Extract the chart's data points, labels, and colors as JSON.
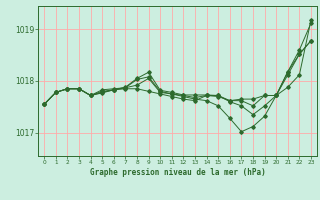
{
  "title": "Graphe pression niveau de la mer (hPa)",
  "background_color": "#cceee0",
  "grid_color": "#ffaaaa",
  "line_color": "#2d6a2d",
  "xlim": [
    -0.5,
    23.5
  ],
  "ylim": [
    1016.55,
    1019.45
  ],
  "yticks": [
    1017,
    1018,
    1019
  ],
  "xtick_labels": [
    "0",
    "1",
    "2",
    "3",
    "4",
    "5",
    "6",
    "7",
    "8",
    "9",
    "10",
    "11",
    "12",
    "13",
    "14",
    "15",
    "16",
    "17",
    "18",
    "19",
    "20",
    "21",
    "22",
    "23"
  ],
  "series": [
    [
      1017.55,
      1017.78,
      1017.85,
      1017.85,
      1017.72,
      1017.77,
      1017.83,
      1017.87,
      1017.92,
      1018.05,
      1017.78,
      1017.75,
      1017.72,
      1017.68,
      1017.72,
      1017.7,
      1017.62,
      1017.65,
      1017.65,
      1017.72,
      1017.72,
      1018.18,
      1018.6,
      1019.12
    ],
    [
      1017.55,
      1017.78,
      1017.85,
      1017.85,
      1017.72,
      1017.8,
      1017.83,
      1017.88,
      1018.05,
      1018.17,
      1017.82,
      1017.78,
      1017.73,
      1017.73,
      1017.73,
      1017.72,
      1017.6,
      1017.52,
      1017.35,
      1017.52,
      1017.72,
      1017.88,
      1018.12,
      1019.18
    ],
    [
      1017.55,
      1017.78,
      1017.85,
      1017.85,
      1017.72,
      1017.83,
      1017.85,
      1017.87,
      1018.03,
      1018.08,
      1017.8,
      1017.75,
      1017.7,
      1017.65,
      1017.62,
      1017.52,
      1017.28,
      1017.02,
      1017.12,
      1017.32,
      1017.72,
      1018.12,
      1018.52,
      1018.78
    ],
    [
      1017.55,
      1017.78,
      1017.85,
      1017.85,
      1017.72,
      1017.78,
      1017.83,
      1017.85,
      1017.85,
      1017.8,
      1017.75,
      1017.7,
      1017.65,
      1017.62,
      1017.72,
      1017.72,
      1017.62,
      1017.62,
      1017.52,
      1017.72,
      1017.72,
      1018.18,
      1018.52,
      1018.78
    ]
  ]
}
